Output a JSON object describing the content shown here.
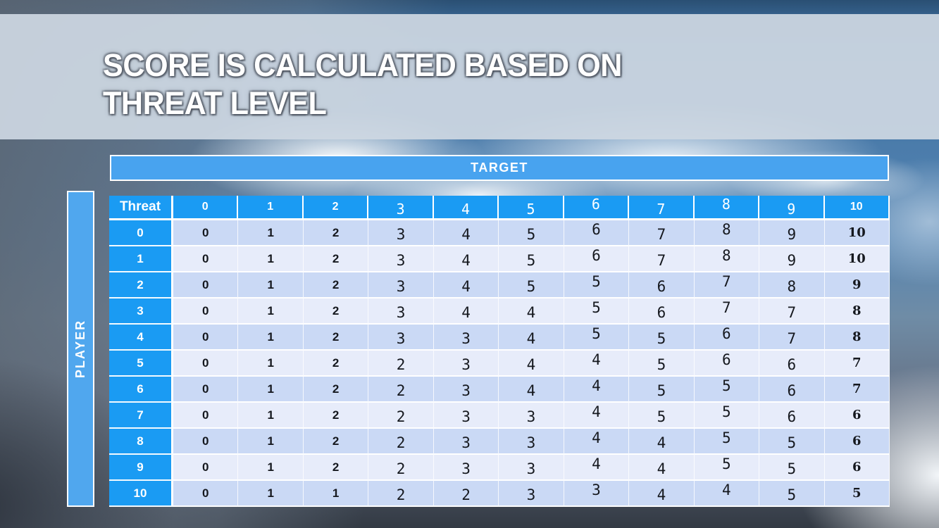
{
  "slide": {
    "title_line1": "SCORE IS CALCULATED BASED ON",
    "title_line2": "THREAT LEVEL"
  },
  "axis_labels": {
    "top": "TARGET",
    "left": "PLAYER"
  },
  "table": {
    "corner_header": "Threat",
    "col_headers": [
      "0",
      "1",
      "2",
      "3",
      "4",
      "5",
      "6",
      "7",
      "8",
      "9",
      "10"
    ],
    "rows": [
      {
        "threat": "0",
        "scores": [
          0,
          1,
          2,
          3,
          4,
          5,
          6,
          7,
          8,
          9,
          10
        ]
      },
      {
        "threat": "1",
        "scores": [
          0,
          1,
          2,
          3,
          4,
          5,
          6,
          7,
          8,
          9,
          10
        ]
      },
      {
        "threat": "2",
        "scores": [
          0,
          1,
          2,
          3,
          4,
          5,
          5,
          6,
          7,
          8,
          9
        ]
      },
      {
        "threat": "3",
        "scores": [
          0,
          1,
          2,
          3,
          4,
          4,
          5,
          6,
          7,
          7,
          8
        ]
      },
      {
        "threat": "4",
        "scores": [
          0,
          1,
          2,
          3,
          3,
          4,
          5,
          5,
          6,
          7,
          8
        ]
      },
      {
        "threat": "5",
        "scores": [
          0,
          1,
          2,
          2,
          3,
          4,
          4,
          5,
          6,
          6,
          7
        ]
      },
      {
        "threat": "6",
        "scores": [
          0,
          1,
          2,
          2,
          3,
          4,
          4,
          5,
          5,
          6,
          7
        ]
      },
      {
        "threat": "7",
        "scores": [
          0,
          1,
          2,
          2,
          3,
          3,
          4,
          5,
          5,
          6,
          6
        ]
      },
      {
        "threat": "8",
        "scores": [
          0,
          1,
          2,
          2,
          3,
          3,
          4,
          4,
          5,
          5,
          6
        ]
      },
      {
        "threat": "9",
        "scores": [
          0,
          1,
          2,
          2,
          3,
          3,
          4,
          4,
          5,
          5,
          6
        ]
      },
      {
        "threat": "10",
        "scores": [
          0,
          1,
          1,
          2,
          2,
          3,
          3,
          4,
          4,
          5,
          5
        ]
      }
    ]
  },
  "colors": {
    "header_blue": "#1a9bf3",
    "band_blue": "#48a3ef",
    "row_even": "#cad9f5",
    "row_odd": "#e7ecfa",
    "banner": "#cdd7e2",
    "title_text": "#ffffff"
  }
}
